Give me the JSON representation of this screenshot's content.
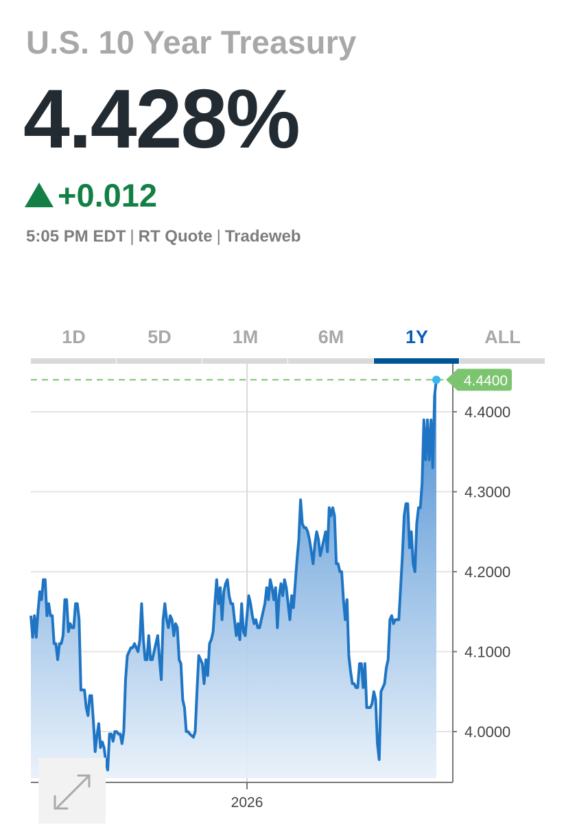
{
  "header": {
    "title": "U.S. 10 Year Treasury",
    "price": "4.428%",
    "change": "+0.012",
    "time": "5:05 PM EDT",
    "source_type": "RT Quote",
    "provider": "Tradeweb",
    "up_color": "#128045"
  },
  "tabs": [
    {
      "label": "1D",
      "active": false
    },
    {
      "label": "5D",
      "active": false
    },
    {
      "label": "1M",
      "active": false
    },
    {
      "label": "6M",
      "active": false
    },
    {
      "label": "1Y",
      "active": true
    },
    {
      "label": "ALL",
      "active": false
    }
  ],
  "chart_data": {
    "type": "area",
    "y_ticks": [
      "4.0000",
      "4.1000",
      "4.2000",
      "4.3000",
      "4.4000"
    ],
    "ylim": [
      3.94,
      4.485
    ],
    "x_tick_label": "2026",
    "x_tick_index": 121,
    "last_value_label": "4.4400",
    "last_value": 4.44,
    "line_color": "#1f75c4",
    "label_color": "#7dc470",
    "values": [
      4.145,
      4.118,
      4.145,
      4.118,
      4.15,
      4.175,
      4.165,
      4.19,
      4.19,
      4.145,
      4.16,
      4.145,
      4.145,
      4.11,
      4.11,
      4.09,
      4.11,
      4.11,
      4.12,
      4.165,
      4.165,
      4.125,
      4.135,
      4.13,
      4.13,
      4.16,
      4.16,
      4.14,
      4.052,
      4.052,
      4.052,
      4.03,
      4.02,
      4.045,
      4.045,
      4.013,
      3.975,
      3.995,
      4.01,
      3.98,
      3.987,
      3.98,
      3.962,
      3.952,
      3.997,
      3.997,
      3.988,
      4.0,
      4.0,
      3.997,
      3.997,
      3.985,
      4.0,
      4.065,
      4.095,
      4.1,
      4.105,
      4.105,
      4.11,
      4.105,
      4.1,
      4.115,
      4.16,
      4.115,
      4.09,
      4.09,
      4.12,
      4.09,
      4.09,
      4.1,
      4.11,
      4.12,
      4.09,
      4.065,
      4.14,
      4.16,
      4.14,
      4.13,
      4.145,
      4.14,
      4.12,
      4.135,
      4.13,
      4.09,
      4.085,
      4.04,
      4.03,
      4.0,
      4.0,
      3.997,
      3.995,
      3.993,
      4.0,
      4.05,
      4.095,
      4.09,
      4.085,
      4.06,
      4.09,
      4.07,
      4.11,
      4.115,
      4.125,
      4.16,
      4.19,
      4.16,
      4.18,
      4.14,
      4.175,
      4.185,
      4.19,
      4.17,
      4.16,
      4.16,
      4.14,
      4.12,
      4.135,
      4.115,
      4.16,
      4.125,
      4.12,
      4.145,
      4.17,
      4.16,
      4.145,
      4.135,
      4.14,
      4.13,
      4.13,
      4.14,
      4.15,
      4.16,
      4.18,
      4.165,
      4.19,
      4.18,
      4.165,
      4.18,
      4.13,
      4.17,
      4.185,
      4.17,
      4.19,
      4.18,
      4.16,
      4.14,
      4.17,
      4.155,
      4.185,
      4.215,
      4.24,
      4.29,
      4.26,
      4.255,
      4.255,
      4.25,
      4.24,
      4.225,
      4.21,
      4.235,
      4.25,
      4.24,
      4.22,
      4.23,
      4.24,
      4.25,
      4.225,
      4.28,
      4.27,
      4.28,
      4.27,
      4.21,
      4.21,
      4.2,
      4.2,
      4.165,
      4.14,
      4.165,
      4.095,
      4.075,
      4.06,
      4.06,
      4.055,
      4.055,
      4.085,
      4.085,
      4.055,
      4.085,
      4.03,
      4.03,
      4.03,
      4.035,
      4.05,
      4.04,
      3.985,
      3.965,
      4.05,
      4.055,
      4.06,
      4.08,
      4.09,
      4.14,
      4.145,
      4.135,
      4.14,
      4.14,
      4.14,
      4.18,
      4.22,
      4.27,
      4.285,
      4.285,
      4.23,
      4.25,
      4.21,
      4.2,
      4.26,
      4.28,
      4.28,
      4.31,
      4.39,
      4.34,
      4.39,
      4.34,
      4.39,
      4.33,
      4.42,
      4.44
    ]
  }
}
